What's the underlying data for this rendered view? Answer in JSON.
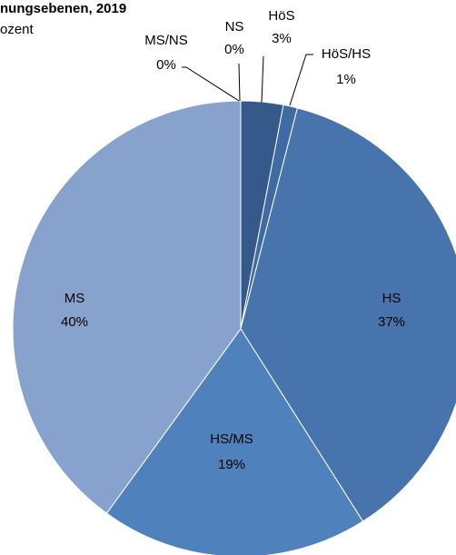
{
  "chart_data": {
    "type": "pie",
    "title": "nungsebenen, 2019",
    "subtitle": "ozent",
    "categories": [
      "HöS",
      "HöS/HS",
      "HS",
      "HS/MS",
      "MS",
      "MS/NS",
      "NS"
    ],
    "values": [
      3,
      1,
      37,
      19,
      40,
      0,
      0
    ],
    "value_labels": [
      "3%",
      "1%",
      "37%",
      "19%",
      "40%",
      "0%",
      "0%"
    ],
    "colors": [
      "#34598a",
      "#3f6aa3",
      "#4874ad",
      "#4f81bd",
      "#87a2cd",
      "#a9bde0",
      "#c5d3ea"
    ]
  }
}
